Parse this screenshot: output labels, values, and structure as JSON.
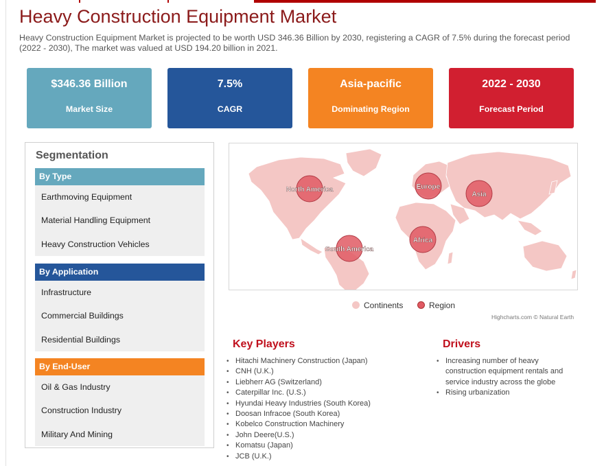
{
  "page": {
    "title": "Heavy Construction Equipment Market",
    "description": "Heavy Construction Equipment Market is projected to be worth USD 346.36 Billion by 2030, registering a CAGR of 7.5% during the forecast period (2022 - 2030), The market was valued at USD 194.20 billion in 2021."
  },
  "colors": {
    "title": "#8b1a1a",
    "kpi_market_size": "#65a8bd",
    "kpi_cagr": "#25569a",
    "kpi_region": "#f48422",
    "kpi_forecast": "#d11f30",
    "seg_type": "#65a8bd",
    "seg_application": "#25569a",
    "seg_end_user": "#f48422",
    "accent_red": "#c0101d",
    "continent_fill": "#f4c7c5",
    "region_bubble": "#e05a64"
  },
  "kpis": [
    {
      "value": "$346.36 Billion",
      "label": "Market Size"
    },
    {
      "value": "7.5%",
      "label": "CAGR"
    },
    {
      "value": "Asia-pacific",
      "label": "Dominating Region"
    },
    {
      "value": "2022 - 2030",
      "label": "Forecast Period"
    }
  ],
  "segmentation": {
    "title": "Segmentation",
    "groups": [
      {
        "heading": "By Type",
        "items": [
          "Earthmoving Equipment",
          "Material Handling Equipment",
          "Heavy Construction Vehicles"
        ]
      },
      {
        "heading": "By Application",
        "items": [
          "Infrastructure",
          "Commercial Buildings",
          "Residential Buildings"
        ]
      },
      {
        "heading": "By End-User",
        "items": [
          "Oil & Gas Industry",
          "Construction Industry",
          "Military And Mining"
        ]
      }
    ]
  },
  "map": {
    "regions": [
      "North America",
      "Europe",
      "Asia",
      "South America",
      "Africa"
    ],
    "legend": {
      "continents": "Continents",
      "region": "Region"
    },
    "credit": "Highcharts.com © Natural Earth"
  },
  "key_players": {
    "title": "Key Players",
    "items": [
      "Hitachi Machinery Construction (Japan)",
      "CNH (U.K.)",
      "Liebherr AG (Switzerland)",
      "Caterpillar Inc. (U.S.)",
      "Hyundai Heavy Industries (South Korea)",
      "Doosan Infracoe (South Korea)",
      "Kobelco Construction Machinery",
      "John Deere(U.S.)",
      "Komatsu (Japan)",
      "JCB (U.K.)"
    ]
  },
  "drivers": {
    "title": "Drivers",
    "items": [
      "Increasing number of heavy construction equipment rentals and service industry across the globe",
      "Rising urbanization"
    ]
  }
}
